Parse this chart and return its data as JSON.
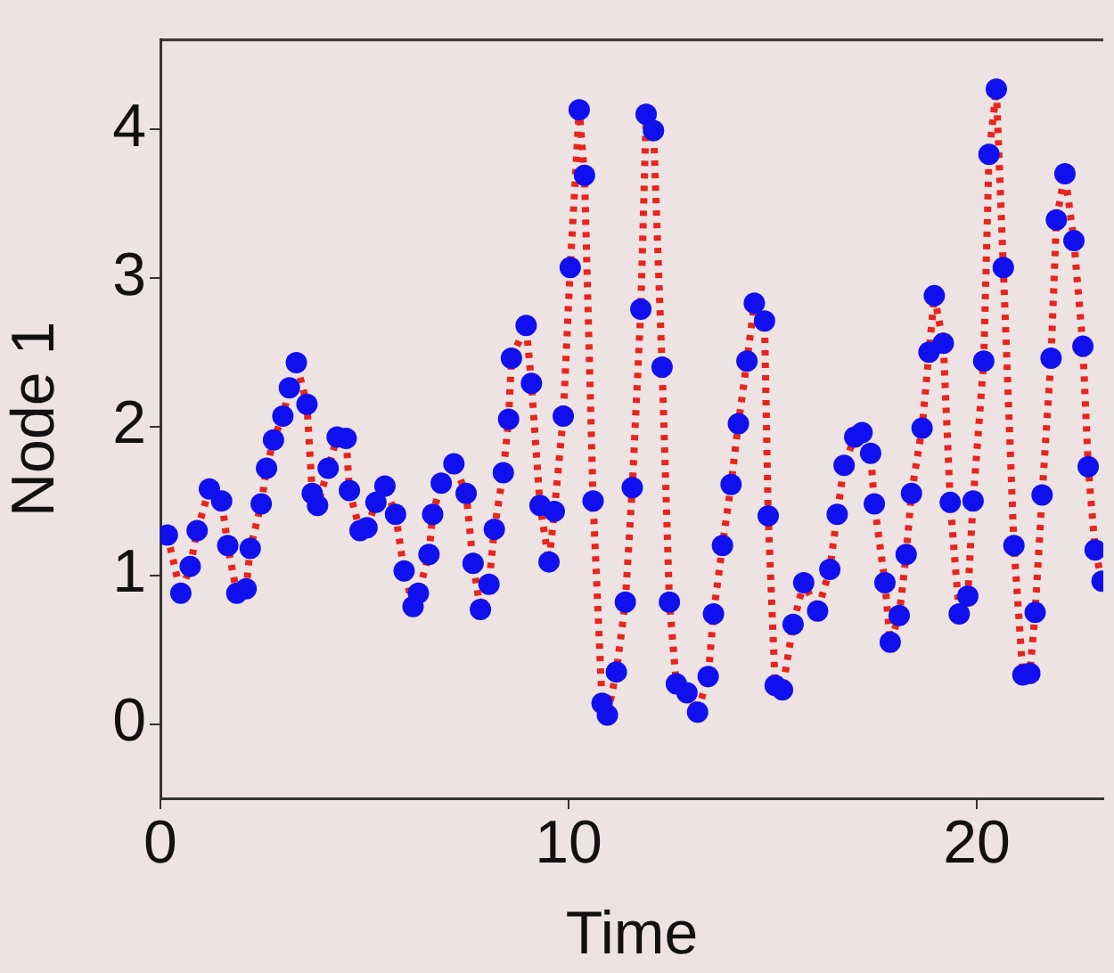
{
  "chart_data": {
    "type": "line",
    "xlabel": "Time",
    "ylabel": "Node 1",
    "x": [
      0.17,
      0.5,
      0.73,
      0.9,
      1.2,
      1.5,
      1.65,
      1.87,
      2.1,
      2.2,
      2.47,
      2.6,
      2.77,
      3.0,
      3.16,
      3.33,
      3.59,
      3.72,
      3.85,
      4.11,
      4.33,
      4.55,
      4.63,
      4.89,
      5.06,
      5.28,
      5.5,
      5.76,
      5.97,
      6.19,
      6.32,
      6.58,
      6.67,
      6.88,
      7.19,
      7.49,
      7.66,
      7.84,
      8.05,
      8.18,
      8.4,
      8.53,
      8.6,
      8.96,
      9.09,
      9.3,
      9.52,
      9.65,
      9.87,
      10.04,
      10.26,
      10.39,
      10.6,
      10.82,
      10.95,
      11.17,
      11.39,
      11.56,
      11.77,
      11.9,
      12.08,
      12.29,
      12.47,
      12.64,
      12.9,
      13.16,
      13.42,
      13.55,
      13.77,
      13.98,
      14.16,
      14.37,
      14.55,
      14.8,
      14.89,
      15.06,
      15.24,
      15.5,
      15.76,
      16.1,
      16.4,
      16.58,
      16.75,
      17.01,
      17.19,
      17.4,
      17.49,
      17.75,
      17.88,
      18.1,
      18.27,
      18.4,
      18.66,
      18.83,
      18.96,
      19.18,
      19.35,
      19.57,
      19.78,
      19.91,
      20.17,
      20.3,
      20.48,
      20.65,
      20.91,
      21.13,
      21.3,
      21.43,
      21.6,
      21.82,
      21.95,
      22.16,
      22.38,
      22.6,
      22.73,
      22.9,
      23.07
    ],
    "series": [
      {
        "color": "#e8241c",
        "line_style": "dotted",
        "marker": "none",
        "values": [
          1.27,
          0.88,
          1.06,
          1.3,
          1.58,
          1.5,
          1.2,
          0.88,
          0.91,
          1.18,
          1.48,
          1.72,
          1.91,
          2.07,
          2.26,
          2.43,
          2.15,
          1.55,
          1.47,
          1.72,
          1.93,
          1.92,
          1.57,
          1.3,
          1.32,
          1.49,
          1.6,
          1.41,
          1.03,
          0.79,
          0.88,
          1.14,
          1.41,
          1.62,
          1.75,
          1.55,
          1.08,
          0.77,
          0.94,
          1.31,
          1.69,
          2.05,
          2.46,
          2.68,
          2.29,
          1.47,
          1.09,
          1.43,
          2.07,
          3.07,
          4.13,
          3.69,
          1.5,
          0.14,
          0.06,
          0.35,
          0.82,
          1.59,
          2.79,
          4.1,
          3.99,
          2.4,
          0.82,
          0.27,
          0.21,
          0.08,
          0.32,
          0.74,
          1.2,
          1.61,
          2.02,
          2.44,
          2.83,
          2.71,
          1.4,
          0.26,
          0.23,
          0.67,
          0.95,
          0.76,
          1.04,
          1.41,
          1.74,
          1.93,
          1.96,
          1.82,
          1.48,
          0.95,
          0.55,
          0.73,
          1.14,
          1.55,
          1.99,
          2.5,
          2.88,
          2.56,
          1.49,
          0.74,
          0.86,
          1.5,
          2.44,
          3.83,
          4.27,
          3.07,
          1.2,
          0.33,
          0.34,
          0.75,
          1.54,
          2.46,
          3.39,
          3.7,
          3.25,
          2.54,
          1.73,
          1.17,
          0.96
        ]
      },
      {
        "type": "scatter",
        "color": "#1010ee",
        "marker": "circle",
        "values": [
          1.27,
          0.88,
          1.06,
          1.3,
          1.58,
          1.5,
          1.2,
          0.88,
          0.91,
          1.18,
          1.48,
          1.72,
          1.91,
          2.07,
          2.26,
          2.43,
          2.15,
          1.55,
          1.47,
          1.72,
          1.93,
          1.92,
          1.57,
          1.3,
          1.32,
          1.49,
          1.6,
          1.41,
          1.03,
          0.79,
          0.88,
          1.14,
          1.41,
          1.62,
          1.75,
          1.55,
          1.08,
          0.77,
          0.94,
          1.31,
          1.69,
          2.05,
          2.46,
          2.68,
          2.29,
          1.47,
          1.09,
          1.43,
          2.07,
          3.07,
          4.13,
          3.69,
          1.5,
          0.14,
          0.06,
          0.35,
          0.82,
          1.59,
          2.79,
          4.1,
          3.99,
          2.4,
          0.82,
          0.27,
          0.21,
          0.08,
          0.32,
          0.74,
          1.2,
          1.61,
          2.02,
          2.44,
          2.83,
          2.71,
          1.4,
          0.26,
          0.23,
          0.67,
          0.95,
          0.76,
          1.04,
          1.41,
          1.74,
          1.93,
          1.96,
          1.82,
          1.48,
          0.95,
          0.55,
          0.73,
          1.14,
          1.55,
          1.99,
          2.5,
          2.88,
          2.56,
          1.49,
          0.74,
          0.86,
          1.5,
          2.44,
          3.83,
          4.27,
          3.07,
          1.2,
          0.33,
          0.34,
          0.75,
          1.54,
          2.46,
          3.39,
          3.7,
          3.25,
          2.54,
          1.73,
          1.17,
          0.96
        ]
      }
    ],
    "xlim": [
      0,
      23.1
    ],
    "xticks": [
      0,
      10,
      20
    ],
    "ylim": [
      -0.5,
      4.6
    ],
    "yticks": [
      0,
      1,
      2,
      3,
      4
    ],
    "grid": false,
    "legend": false
  }
}
